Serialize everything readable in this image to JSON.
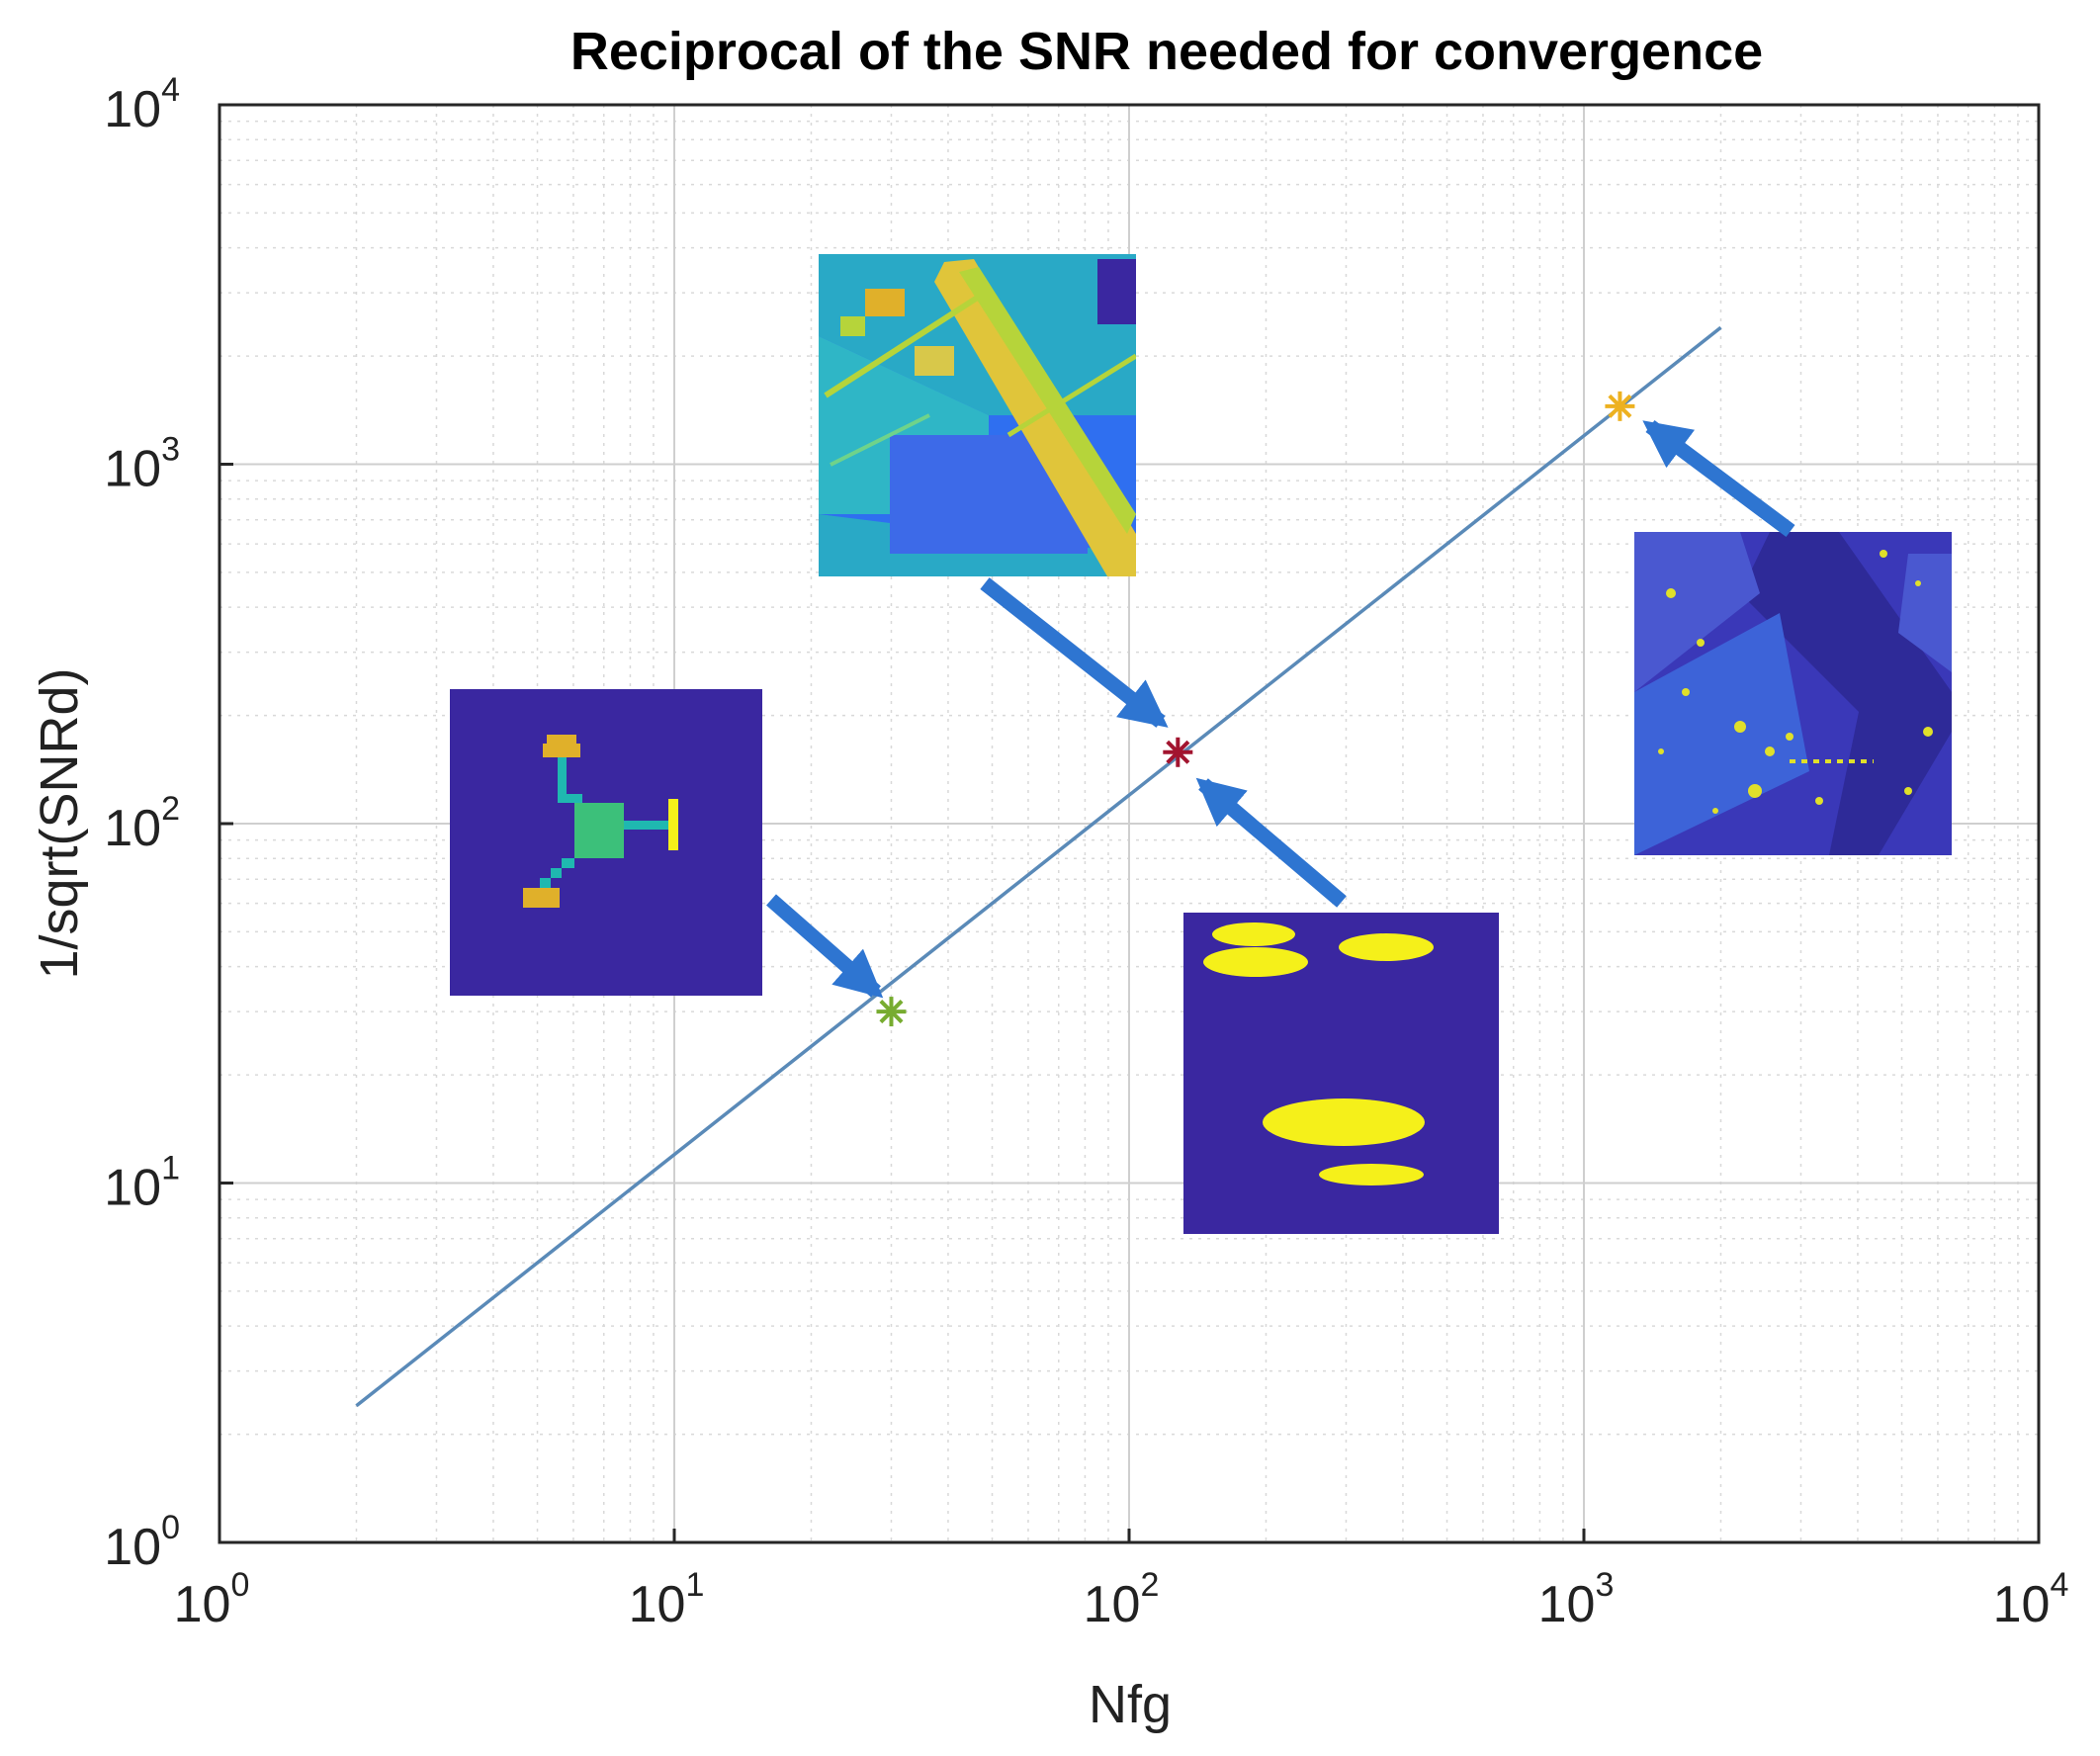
{
  "chart_data": {
    "type": "line",
    "title": "Reciprocal of the SNR needed for convergence",
    "xlabel": "Nfg",
    "ylabel": "1/sqrt(SNRd)",
    "xscale": "log",
    "yscale": "log",
    "xlim": [
      1,
      10000
    ],
    "ylim": [
      1,
      10000
    ],
    "grid": true,
    "minor_grid": true,
    "x_ticks": [
      {
        "value": 1,
        "base": "10",
        "exp": "0"
      },
      {
        "value": 10,
        "base": "10",
        "exp": "1"
      },
      {
        "value": 100,
        "base": "10",
        "exp": "2"
      },
      {
        "value": 1000,
        "base": "10",
        "exp": "3"
      },
      {
        "value": 10000,
        "base": "10",
        "exp": "4"
      }
    ],
    "y_ticks": [
      {
        "value": 1,
        "base": "10",
        "exp": "0"
      },
      {
        "value": 10,
        "base": "10",
        "exp": "1"
      },
      {
        "value": 100,
        "base": "10",
        "exp": "2"
      },
      {
        "value": 1000,
        "base": "10",
        "exp": "3"
      },
      {
        "value": 10000,
        "base": "10",
        "exp": "4"
      }
    ],
    "series": [
      {
        "name": "fit",
        "kind": "line",
        "color": "#5a8ab8",
        "x": [
          2,
          2000
        ],
        "y": [
          2.4,
          2400
        ]
      }
    ],
    "points": [
      {
        "name": "point-1",
        "x": 30,
        "y": 30,
        "color": "#77ac30",
        "marker": "*",
        "inset": "pixel-cross-example"
      },
      {
        "name": "point-2",
        "x": 128,
        "y": 158,
        "color": "#a2142f",
        "marker": "*",
        "inset": "aerial-scene-example, blob-example"
      },
      {
        "name": "point-3",
        "x": 1200,
        "y": 1450,
        "color": "#edb120",
        "marker": "*",
        "inset": "dark-aerial-example"
      }
    ],
    "annotations": [
      {
        "type": "arrow",
        "target": "point-1",
        "color": "#2e75d1"
      },
      {
        "type": "arrow",
        "target": "point-2",
        "color": "#2e75d1"
      },
      {
        "type": "arrow",
        "target": "point-2",
        "color": "#2e75d1"
      },
      {
        "type": "arrow",
        "target": "point-3",
        "color": "#2e75d1"
      }
    ]
  },
  "colors": {
    "inset_background": "#3a27a0",
    "inset_yellow": "#f5f01a",
    "inset_orange": "#e0b02a",
    "inset_teal": "#1fb8b0",
    "inset_green": "#3cc07a",
    "inset_cyan": "#29a9c6",
    "inset_blue": "#2f6ff0",
    "arrow": "#2e75d1",
    "grid": "#d9d9d9",
    "axis": "#262626"
  }
}
